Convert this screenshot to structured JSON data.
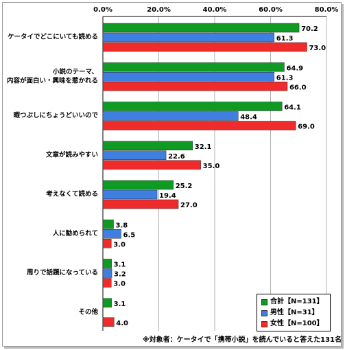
{
  "chart_data": {
    "type": "bar",
    "orientation": "horizontal",
    "categories": [
      "ケータイでどこにいても読める",
      "小説のテーマ、\n内容が面白い・興味を惹かれる",
      "暇つぶしにちょうどいいので",
      "文章が読みやすい",
      "考えなくて読める",
      "人に勧められて",
      "周りで話題になっている",
      "その他"
    ],
    "series": [
      {
        "name": "合計【N=131】",
        "color": "#0e9a23",
        "values": [
          70.2,
          64.9,
          64.1,
          32.1,
          25.2,
          3.8,
          3.1,
          3.1
        ]
      },
      {
        "name": "男性【N=31】",
        "color": "#3f7fdf",
        "values": [
          61.3,
          61.3,
          48.4,
          22.6,
          19.4,
          6.5,
          3.2,
          null
        ]
      },
      {
        "name": "女性【N=100】",
        "color": "#f02b2b",
        "values": [
          73.0,
          66.0,
          69.0,
          35.0,
          27.0,
          3.0,
          3.0,
          4.0
        ]
      }
    ],
    "xlim": [
      0,
      80
    ],
    "ticks": [
      "0.0%",
      "20.0%",
      "40.0%",
      "60.0%",
      "80.0%"
    ],
    "tick_values": [
      0,
      20,
      40,
      60,
      80
    ],
    "grid": true,
    "legend_position": "bottom-right"
  },
  "legend": {
    "total": "合計【N=131】",
    "male": "男性【N=31】",
    "female": "女性【N=100】"
  },
  "footnote": "※対象者：ケータイで「携帯小説」を読んでいると答えた131名"
}
